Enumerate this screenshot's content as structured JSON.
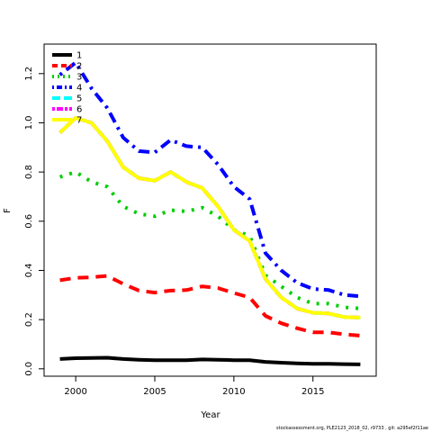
{
  "chart_data": {
    "type": "line",
    "xlabel": "Year",
    "ylabel": "F",
    "xlim": [
      1998,
      2019
    ],
    "ylim": [
      -0.03,
      1.32
    ],
    "x_ticks": [
      2000,
      2005,
      2010,
      2015
    ],
    "y_ticks": [
      0.0,
      0.2,
      0.4,
      0.6,
      0.8,
      1.0,
      1.2
    ],
    "y_tick_labels": [
      "0.0",
      "0.2",
      "0.4",
      "0.6",
      "0.8",
      "1.0",
      "1.2"
    ],
    "legend_position": "top-left",
    "x": [
      1999,
      2000,
      2001,
      2002,
      2003,
      2004,
      2005,
      2006,
      2007,
      2008,
      2009,
      2010,
      2011,
      2012,
      2013,
      2014,
      2015,
      2016,
      2017,
      2018
    ],
    "series": [
      {
        "name": "1",
        "color": "#000000",
        "dash": "solid",
        "values": [
          0.04,
          0.043,
          0.044,
          0.045,
          0.04,
          0.037,
          0.035,
          0.035,
          0.035,
          0.038,
          0.037,
          0.035,
          0.035,
          0.028,
          0.025,
          0.022,
          0.02,
          0.02,
          0.019,
          0.018
        ]
      },
      {
        "name": "2",
        "color": "#ff0000",
        "dash": "dashed",
        "values": [
          0.36,
          0.37,
          0.372,
          0.378,
          0.345,
          0.318,
          0.31,
          0.318,
          0.32,
          0.335,
          0.328,
          0.308,
          0.29,
          0.215,
          0.185,
          0.165,
          0.148,
          0.148,
          0.14,
          0.135
        ]
      },
      {
        "name": "3",
        "color": "#00cd00",
        "dash": "dotted",
        "values": [
          0.78,
          0.8,
          0.76,
          0.74,
          0.66,
          0.63,
          0.62,
          0.645,
          0.64,
          0.655,
          0.62,
          0.565,
          0.54,
          0.38,
          0.335,
          0.29,
          0.265,
          0.265,
          0.25,
          0.245
        ]
      },
      {
        "name": "4",
        "color": "#0000ff",
        "dash": "dotdash",
        "values": [
          1.195,
          1.245,
          1.14,
          1.06,
          0.94,
          0.885,
          0.88,
          0.93,
          0.905,
          0.9,
          0.83,
          0.74,
          0.69,
          0.47,
          0.4,
          0.35,
          0.325,
          0.32,
          0.3,
          0.295
        ]
      },
      {
        "name": "5",
        "color": "#00ffff",
        "dash": "longdash",
        "values": [
          0.96,
          1.02,
          1.0,
          0.925,
          0.82,
          0.775,
          0.765,
          0.8,
          0.76,
          0.735,
          0.66,
          0.565,
          0.52,
          0.365,
          0.29,
          0.245,
          0.228,
          0.225,
          0.21,
          0.208
        ]
      },
      {
        "name": "6",
        "color": "#ff00ff",
        "dash": "twodash",
        "values": [
          0.96,
          1.02,
          1.0,
          0.925,
          0.82,
          0.775,
          0.765,
          0.8,
          0.76,
          0.735,
          0.66,
          0.565,
          0.52,
          0.365,
          0.29,
          0.245,
          0.228,
          0.225,
          0.21,
          0.208
        ]
      },
      {
        "name": "7",
        "color": "#ffff00",
        "dash": "solid",
        "values": [
          0.96,
          1.02,
          1.0,
          0.925,
          0.82,
          0.775,
          0.765,
          0.8,
          0.76,
          0.735,
          0.66,
          0.565,
          0.52,
          0.365,
          0.29,
          0.245,
          0.228,
          0.225,
          0.21,
          0.208
        ]
      }
    ]
  },
  "footer": "stockassessment.org, PLE2123_2018_02, r9733 , git: a295ef2f11ae"
}
